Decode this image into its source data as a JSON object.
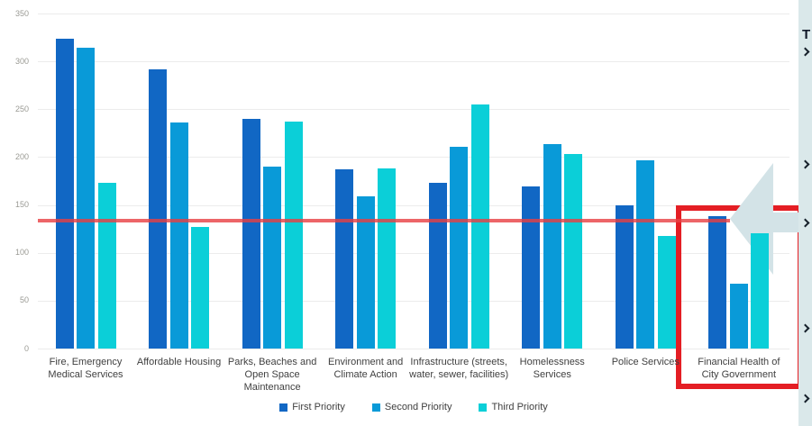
{
  "chart_data": {
    "type": "bar",
    "title": "",
    "categories": [
      "Fire, Emergency Medical Services",
      "Affordable Housing",
      "Parks, Beaches and Open Space Maintenance",
      "Environment and Climate Action",
      "Infrastructure (streets, water, sewer, facilities)",
      "Homelessness Services",
      "Police Services",
      "Financial Health of City Government"
    ],
    "series": [
      {
        "name": "First Priority",
        "color": "#1167C4",
        "values": [
          324,
          292,
          240,
          187,
          173,
          169,
          150,
          138
        ]
      },
      {
        "name": "Second Priority",
        "color": "#099AD8",
        "values": [
          314,
          236,
          190,
          159,
          211,
          214,
          197,
          68
        ]
      },
      {
        "name": "Third Priority",
        "color": "#0BCFD8",
        "values": [
          173,
          127,
          237,
          188,
          255,
          203,
          118,
          120
        ]
      }
    ],
    "ylim": [
      0,
      350
    ],
    "yticks": [
      0,
      50,
      100,
      150,
      200,
      250,
      300,
      350
    ],
    "xlabel": "",
    "ylabel": "",
    "grid": true,
    "legend_position": "bottom",
    "reference_line": {
      "value": 134,
      "color": "#E83E42"
    }
  },
  "annotations": {
    "highlight_box": {
      "highlighted_category": "Financial Health of City Government",
      "color": "#E41E24"
    },
    "left_arrow": {
      "direction": "left",
      "color": "#D3E3E7"
    }
  },
  "side_panel": {
    "visible_title_text": "T",
    "background": "#DAE8EA",
    "bullet_icon": "chevron-bullet",
    "bullet_count": 5
  }
}
